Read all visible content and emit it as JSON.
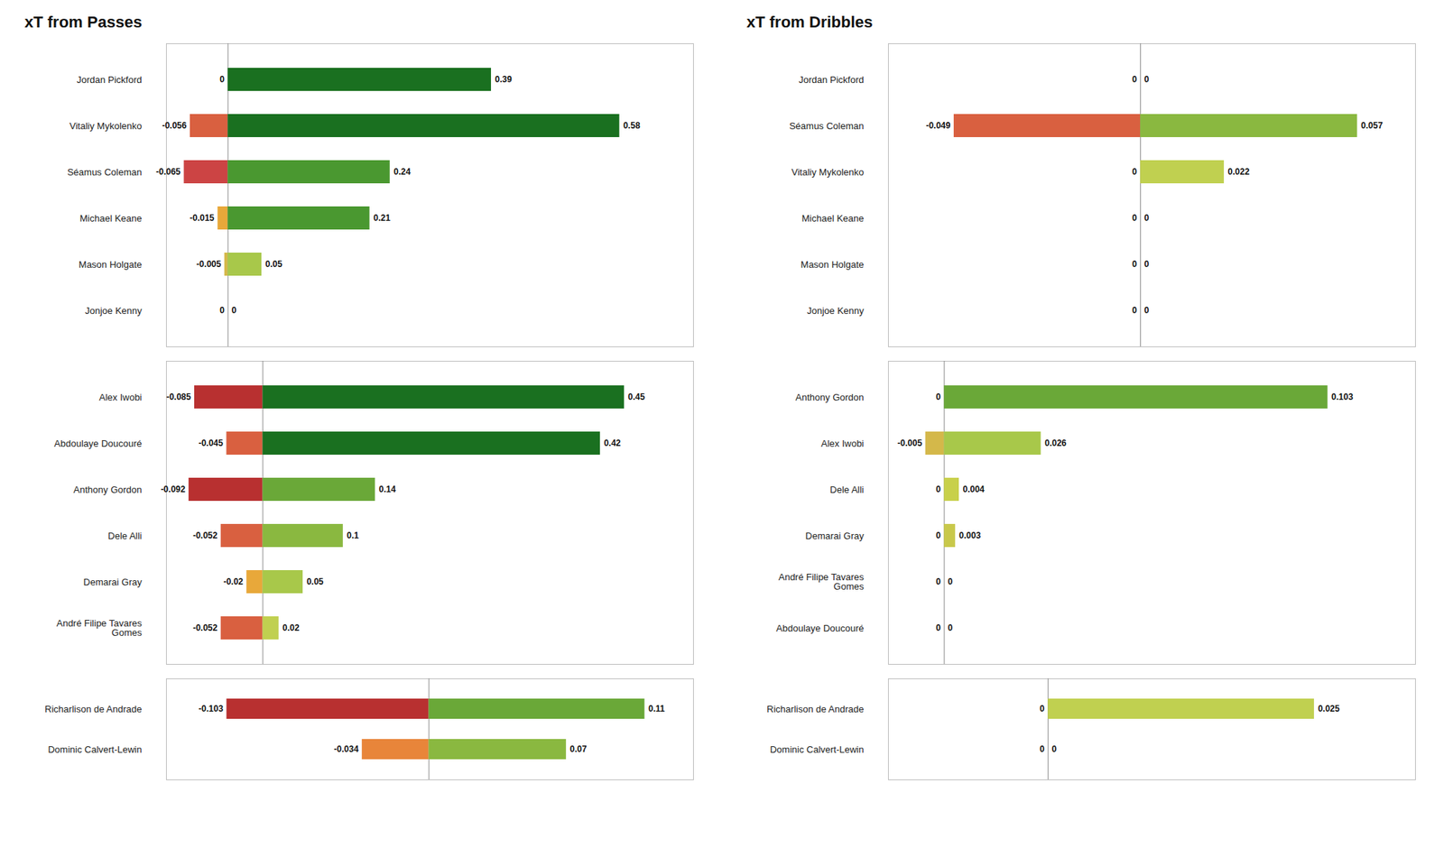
{
  "chart_data": [
    {
      "type": "bar",
      "title": "xT from Passes",
      "orientation": "horizontal",
      "categories": [
        "Jordan Pickford",
        "Vitaliy Mykolenko",
        "Séamus Coleman",
        "Michael Keane",
        "Mason Holgate",
        "Jonjoe Kenny"
      ],
      "series": [
        {
          "values": [
            0,
            -0.056,
            -0.065,
            -0.015,
            -0.005,
            0
          ],
          "colors": [
            null,
            "#d96040",
            "#cc4444",
            "#e8a83a",
            "#d4b84a",
            null
          ]
        },
        {
          "values": [
            0.39,
            0.58,
            0.24,
            0.21,
            0.05,
            0
          ],
          "colors": [
            "#1a7020",
            "#1a7020",
            "#4a9830",
            "#4a9830",
            "#a8c84a",
            null
          ]
        }
      ],
      "xlim": [
        -0.09125,
        0.6894
      ],
      "data_labels": true,
      "tick_labels": "y",
      "grid": false
    },
    {
      "type": "bar",
      "orientation": "horizontal",
      "categories": [
        "Alex Iwobi",
        "Abdoulaye Doucouré",
        "Anthony Gordon",
        "Dele Alli",
        "Demarai Gray",
        "André Filipe Tavares\nGomes"
      ],
      "series": [
        {
          "values": [
            -0.085,
            -0.045,
            -0.092,
            -0.052,
            -0.02,
            -0.052
          ],
          "colors": [
            "#b83030",
            "#d96040",
            "#b83030",
            "#d96040",
            "#e8a83a",
            "#d96040"
          ]
        },
        {
          "values": [
            0.45,
            0.42,
            0.14,
            0.1,
            0.05,
            0.02
          ],
          "colors": [
            "#1a7020",
            "#1a7020",
            "#6aa838",
            "#8ab840",
            "#a8c84a",
            "#c0d050"
          ]
        }
      ],
      "xlim": [
        -0.12,
        0.536
      ],
      "data_labels": true,
      "tick_labels": "y",
      "grid": false
    },
    {
      "type": "bar",
      "orientation": "horizontal",
      "categories": [
        "Richarlison de Andrade",
        "Dominic Calvert-Lewin"
      ],
      "series": [
        {
          "values": [
            -0.103,
            -0.034
          ],
          "colors": [
            "#b83030",
            "#e8853a"
          ]
        },
        {
          "values": [
            0.11,
            0.07
          ],
          "colors": [
            "#6aa838",
            "#8ab840"
          ]
        }
      ],
      "xlim": [
        -0.13375,
        0.1348
      ],
      "data_labels": true,
      "tick_labels": "y",
      "grid": false
    },
    {
      "type": "bar",
      "title": "xT from Dribbles",
      "orientation": "horizontal",
      "categories": [
        "Jordan Pickford",
        "Séamus Coleman",
        "Vitaliy Mykolenko",
        "Michael Keane",
        "Mason Holgate",
        "Jonjoe Kenny"
      ],
      "series": [
        {
          "values": [
            0,
            -0.049,
            0,
            0,
            0,
            0
          ],
          "colors": [
            null,
            "#d96040",
            null,
            null,
            null,
            null
          ]
        },
        {
          "values": [
            0,
            0.057,
            0.022,
            0,
            0,
            0
          ],
          "colors": [
            null,
            "#8ab840",
            "#c0d050",
            null,
            null,
            null
          ]
        }
      ],
      "xlim": [
        -0.06625,
        0.07226
      ],
      "data_labels": true,
      "tick_labels": "y",
      "grid": false
    },
    {
      "type": "bar",
      "orientation": "horizontal",
      "categories": [
        "Anthony Gordon",
        "Alex Iwobi",
        "Dele Alli",
        "Demarai Gray",
        "André Filipe Tavares\nGomes",
        "Abdoulaye Doucouré"
      ],
      "series": [
        {
          "values": [
            0,
            -0.005,
            0,
            0,
            0,
            0
          ],
          "colors": [
            null,
            "#d4b84a",
            null,
            null,
            null,
            null
          ]
        },
        {
          "values": [
            0.103,
            0.026,
            0.004,
            0.003,
            0,
            0
          ],
          "colors": [
            "#6aa838",
            "#a8c84a",
            "#c8d04a",
            "#c8c84a",
            null,
            null
          ]
        }
      ],
      "xlim": [
        -0.015,
        0.12654
      ],
      "data_labels": true,
      "tick_labels": "y",
      "grid": false
    },
    {
      "type": "bar",
      "orientation": "horizontal",
      "categories": [
        "Richarlison de Andrade",
        "Dominic Calvert-Lewin"
      ],
      "series": [
        {
          "values": [
            0,
            0
          ],
          "colors": [
            null,
            null
          ]
        },
        {
          "values": [
            0.025,
            0
          ],
          "colors": [
            "#c0d050",
            null
          ]
        }
      ],
      "xlim": [
        -0.015,
        0.0345
      ],
      "data_labels": true,
      "tick_labels": "y",
      "grid": false
    }
  ]
}
